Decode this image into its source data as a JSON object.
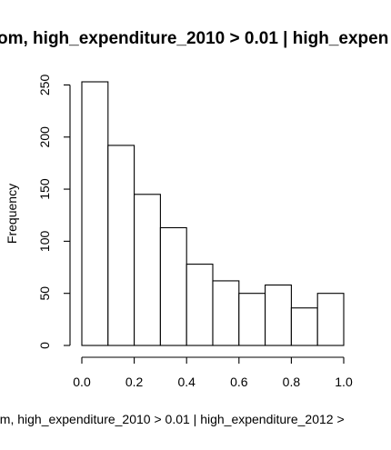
{
  "chart_data": {
    "type": "bar",
    "title": "om, high_expenditure_2010 > 0.01 | high_expen",
    "xlabel": "om, high_expenditure_2010 > 0.01 | high_expenditure_2012 >",
    "ylabel": "Frequency",
    "bins": [
      {
        "x0": 0.0,
        "x1": 0.1,
        "count": 253
      },
      {
        "x0": 0.1,
        "x1": 0.2,
        "count": 192
      },
      {
        "x0": 0.2,
        "x1": 0.3,
        "count": 145
      },
      {
        "x0": 0.3,
        "x1": 0.4,
        "count": 113
      },
      {
        "x0": 0.4,
        "x1": 0.5,
        "count": 78
      },
      {
        "x0": 0.5,
        "x1": 0.6,
        "count": 62
      },
      {
        "x0": 0.6,
        "x1": 0.7,
        "count": 50
      },
      {
        "x0": 0.7,
        "x1": 0.8,
        "count": 58
      },
      {
        "x0": 0.8,
        "x1": 0.9,
        "count": 36
      },
      {
        "x0": 0.9,
        "x1": 1.0,
        "count": 50
      }
    ],
    "xlim": [
      0,
      1
    ],
    "ylim": [
      0,
      253
    ],
    "x_ticks": [
      "0.0",
      "0.2",
      "0.4",
      "0.6",
      "0.8",
      "1.0"
    ],
    "y_ticks": [
      "0",
      "50",
      "100",
      "150",
      "200",
      "250"
    ],
    "grid": false,
    "legend": "none"
  }
}
